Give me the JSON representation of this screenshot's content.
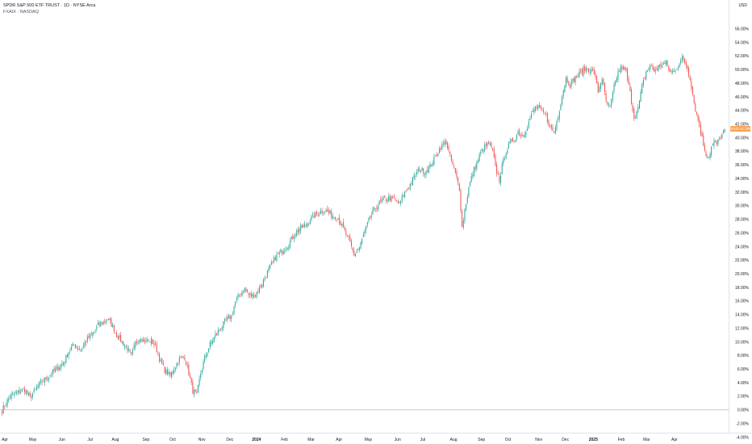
{
  "chart_data": {
    "type": "candlestick",
    "title": "SPDR S&P 500 ETF TRUST · 1D · NYSE Arca",
    "subtitle": "FXAIX · NASDAQ",
    "ylabel": "USD",
    "ylim": [
      -5,
      57
    ],
    "yticks": [
      "56.00%",
      "54.00%",
      "52.00%",
      "50.00%",
      "48.00%",
      "46.00%",
      "44.00%",
      "42.00%",
      "40.00%",
      "38.00%",
      "36.00%",
      "34.00%",
      "32.00%",
      "30.00%",
      "28.00%",
      "26.00%",
      "24.00%",
      "22.00%",
      "20.00%",
      "18.00%",
      "16.00%",
      "14.00%",
      "12.00%",
      "10.00%",
      "8.00%",
      "6.00%",
      "4.00%",
      "2.00%",
      "0.00%",
      "-2.00%",
      "-4.00%"
    ],
    "ytick_values": [
      56,
      54,
      52,
      50,
      48,
      46,
      44,
      42,
      40,
      38,
      36,
      34,
      32,
      30,
      28,
      26,
      24,
      22,
      20,
      18,
      16,
      14,
      12,
      10,
      8,
      6,
      4,
      2,
      0,
      -2,
      -4
    ],
    "xticks": [
      {
        "label": "Apr",
        "i": 0,
        "bold": false
      },
      {
        "label": "May",
        "i": 21,
        "bold": false
      },
      {
        "label": "Jun",
        "i": 43,
        "bold": false
      },
      {
        "label": "Jul",
        "i": 64,
        "bold": false
      },
      {
        "label": "Aug",
        "i": 83,
        "bold": false
      },
      {
        "label": "Sep",
        "i": 106,
        "bold": false
      },
      {
        "label": "Oct",
        "i": 126,
        "bold": false
      },
      {
        "label": "Nov",
        "i": 148,
        "bold": false
      },
      {
        "label": "Dec",
        "i": 169,
        "bold": false
      },
      {
        "label": "2024",
        "i": 189,
        "bold": true
      },
      {
        "label": "Feb",
        "i": 210,
        "bold": false
      },
      {
        "label": "Mar",
        "i": 230,
        "bold": false
      },
      {
        "label": "Apr",
        "i": 251,
        "bold": false
      },
      {
        "label": "May",
        "i": 273,
        "bold": false
      },
      {
        "label": "Jun",
        "i": 295,
        "bold": false
      },
      {
        "label": "Jul",
        "i": 314,
        "bold": false
      },
      {
        "label": "Aug",
        "i": 337,
        "bold": false
      },
      {
        "label": "Sep",
        "i": 358,
        "bold": false
      },
      {
        "label": "Oct",
        "i": 378,
        "bold": false
      },
      {
        "label": "Nov",
        "i": 401,
        "bold": false
      },
      {
        "label": "Dec",
        "i": 421,
        "bold": false
      },
      {
        "label": "2025",
        "i": 442,
        "bold": true
      },
      {
        "label": "Feb",
        "i": 463,
        "bold": false
      },
      {
        "label": "Mar",
        "i": 482,
        "bold": false
      },
      {
        "label": "Apr",
        "i": 503,
        "bold": false
      }
    ],
    "x_index_max": 505,
    "baseline": 0,
    "current_value": 41.3,
    "current_label": "FXAIX  41.30%",
    "closes_by_index": [
      [
        0,
        0.0
      ],
      [
        6,
        2.0
      ],
      [
        12,
        2.6
      ],
      [
        17,
        3.0
      ],
      [
        21,
        1.8
      ],
      [
        28,
        3.8
      ],
      [
        35,
        5.0
      ],
      [
        42,
        6.2
      ],
      [
        47,
        7.2
      ],
      [
        50,
        8.6
      ],
      [
        54,
        9.6
      ],
      [
        59,
        8.8
      ],
      [
        64,
        10.4
      ],
      [
        68,
        11.2
      ],
      [
        72,
        12.4
      ],
      [
        76,
        13.0
      ],
      [
        79,
        13.4
      ],
      [
        82,
        12.6
      ],
      [
        86,
        11.0
      ],
      [
        90,
        10.0
      ],
      [
        94,
        9.0
      ],
      [
        97,
        7.8
      ],
      [
        100,
        9.8
      ],
      [
        104,
        10.8
      ],
      [
        108,
        10.0
      ],
      [
        112,
        10.2
      ],
      [
        115,
        9.4
      ],
      [
        119,
        7.0
      ],
      [
        122,
        5.8
      ],
      [
        126,
        5.0
      ],
      [
        129,
        6.2
      ],
      [
        133,
        7.4
      ],
      [
        137,
        7.8
      ],
      [
        140,
        5.4
      ],
      [
        143,
        2.8
      ],
      [
        146,
        2.2
      ],
      [
        149,
        5.4
      ],
      [
        152,
        7.6
      ],
      [
        156,
        9.6
      ],
      [
        160,
        11.0
      ],
      [
        164,
        12.0
      ],
      [
        168,
        13.2
      ],
      [
        172,
        13.8
      ],
      [
        175,
        15.8
      ],
      [
        179,
        17.2
      ],
      [
        182,
        17.8
      ],
      [
        186,
        16.6
      ],
      [
        190,
        17.0
      ],
      [
        193,
        17.8
      ],
      [
        197,
        19.4
      ],
      [
        200,
        20.6
      ],
      [
        205,
        22.4
      ],
      [
        210,
        23.4
      ],
      [
        215,
        24.4
      ],
      [
        219,
        25.8
      ],
      [
        223,
        26.6
      ],
      [
        228,
        27.2
      ],
      [
        232,
        28.2
      ],
      [
        236,
        28.8
      ],
      [
        241,
        29.4
      ],
      [
        245,
        29.0
      ],
      [
        248,
        28.6
      ],
      [
        252,
        28.2
      ],
      [
        256,
        26.6
      ],
      [
        260,
        25.0
      ],
      [
        264,
        22.8
      ],
      [
        268,
        23.8
      ],
      [
        271,
        25.6
      ],
      [
        275,
        27.8
      ],
      [
        279,
        29.4
      ],
      [
        283,
        30.4
      ],
      [
        286,
        30.8
      ],
      [
        290,
        31.2
      ],
      [
        294,
        31.0
      ],
      [
        298,
        30.2
      ],
      [
        301,
        31.6
      ],
      [
        305,
        32.8
      ],
      [
        309,
        34.2
      ],
      [
        313,
        35.4
      ],
      [
        317,
        35.0
      ],
      [
        321,
        35.8
      ],
      [
        325,
        37.2
      ],
      [
        329,
        38.6
      ],
      [
        333,
        39.4
      ],
      [
        336,
        37.2
      ],
      [
        339,
        35.4
      ],
      [
        341,
        34.0
      ],
      [
        343,
        32.6
      ],
      [
        345,
        26.8
      ],
      [
        347,
        29.4
      ],
      [
        350,
        32.6
      ],
      [
        353,
        34.8
      ],
      [
        356,
        36.2
      ],
      [
        359,
        37.8
      ],
      [
        362,
        38.6
      ],
      [
        365,
        39.2
      ],
      [
        368,
        38.0
      ],
      [
        370,
        35.6
      ],
      [
        373,
        33.8
      ],
      [
        375,
        35.8
      ],
      [
        378,
        38.0
      ],
      [
        381,
        39.2
      ],
      [
        384,
        39.8
      ],
      [
        387,
        40.8
      ],
      [
        390,
        40.2
      ],
      [
        393,
        41.2
      ],
      [
        396,
        42.8
      ],
      [
        399,
        44.2
      ],
      [
        402,
        44.6
      ],
      [
        405,
        43.8
      ],
      [
        408,
        43.2
      ],
      [
        411,
        41.6
      ],
      [
        414,
        40.8
      ],
      [
        417,
        43.2
      ],
      [
        420,
        46.2
      ],
      [
        423,
        48.8
      ],
      [
        426,
        47.8
      ],
      [
        429,
        48.6
      ],
      [
        432,
        49.2
      ],
      [
        435,
        49.8
      ],
      [
        438,
        50.2
      ],
      [
        441,
        50.0
      ],
      [
        444,
        49.6
      ],
      [
        447,
        46.8
      ],
      [
        450,
        48.8
      ],
      [
        453,
        45.2
      ],
      [
        456,
        44.4
      ],
      [
        459,
        47.4
      ],
      [
        462,
        49.6
      ],
      [
        465,
        50.4
      ],
      [
        468,
        49.6
      ],
      [
        471,
        46.6
      ],
      [
        474,
        43.0
      ],
      [
        477,
        44.2
      ],
      [
        480,
        47.6
      ],
      [
        483,
        49.6
      ],
      [
        486,
        50.6
      ],
      [
        489,
        49.8
      ],
      [
        492,
        50.4
      ],
      [
        495,
        50.8
      ],
      [
        498,
        51.0
      ],
      [
        501,
        49.6
      ],
      [
        504,
        49.8
      ],
      [
        507,
        50.6
      ],
      [
        510,
        51.6
      ],
      [
        513,
        50.8
      ],
      [
        516,
        48.8
      ],
      [
        518,
        46.4
      ],
      [
        520,
        44.2
      ],
      [
        522,
        42.6
      ],
      [
        524,
        40.8
      ],
      [
        526,
        39.0
      ],
      [
        528,
        37.6
      ],
      [
        530,
        37.2
      ],
      [
        532,
        38.6
      ],
      [
        534,
        39.4
      ],
      [
        536,
        39.0
      ],
      [
        538,
        39.8
      ],
      [
        540,
        40.4
      ],
      [
        542,
        41.3
      ]
    ],
    "grid": false,
    "legend": "top-left"
  }
}
